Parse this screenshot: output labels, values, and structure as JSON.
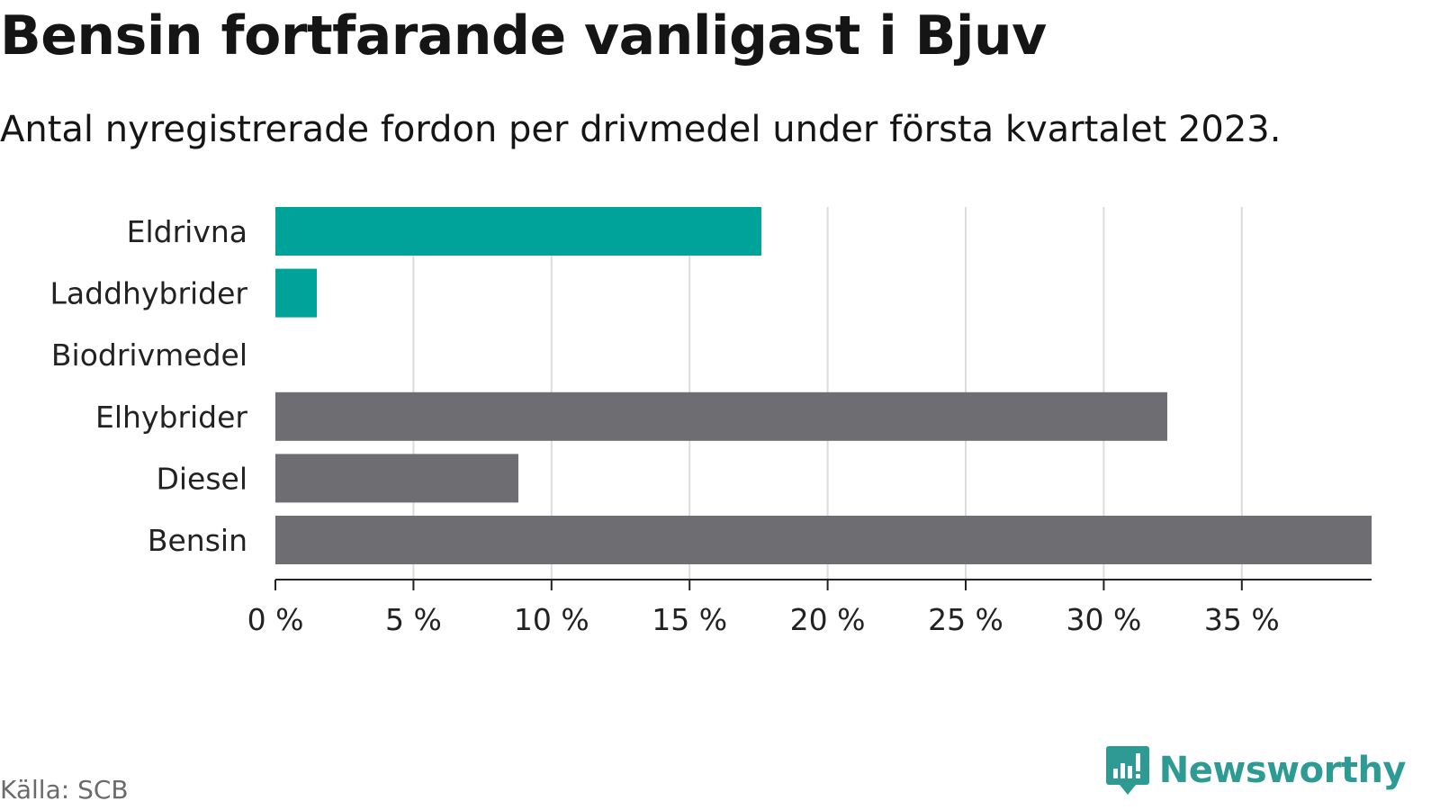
{
  "header": {
    "title": "Bensin fortfarande vanligast i Bjuv",
    "subtitle": "Antal nyregistrerade fordon per drivmedel under första kvartalet 2023."
  },
  "footer": {
    "source": "Källa: SCB",
    "brand": "Newsworthy",
    "brand_icon": "bar-chart-speech-bubble-icon"
  },
  "colors": {
    "electric": "#00A39A",
    "fossil": "#6E6D72",
    "grid": "#DCDCDC",
    "axis": "#222222",
    "brand": "#2E9A94"
  },
  "chart_data": {
    "type": "bar",
    "orientation": "horizontal",
    "categories": [
      "Eldrivna",
      "Laddhybrider",
      "Biodrivmedel",
      "Elhybrider",
      "Diesel",
      "Bensin"
    ],
    "values": [
      17.6,
      1.5,
      0,
      32.3,
      8.8,
      39.7
    ],
    "groups": [
      "electric",
      "electric",
      "electric",
      "fossil",
      "fossil",
      "fossil"
    ],
    "xlim": [
      0,
      39.7
    ],
    "xticks": [
      0,
      5,
      10,
      15,
      20,
      25,
      30,
      35
    ],
    "xtick_labels": [
      "0 %",
      "5 %",
      "10 %",
      "15 %",
      "20 %",
      "25 %",
      "30 %",
      "35 %"
    ],
    "grid": true,
    "xlabel": "",
    "ylabel": ""
  }
}
